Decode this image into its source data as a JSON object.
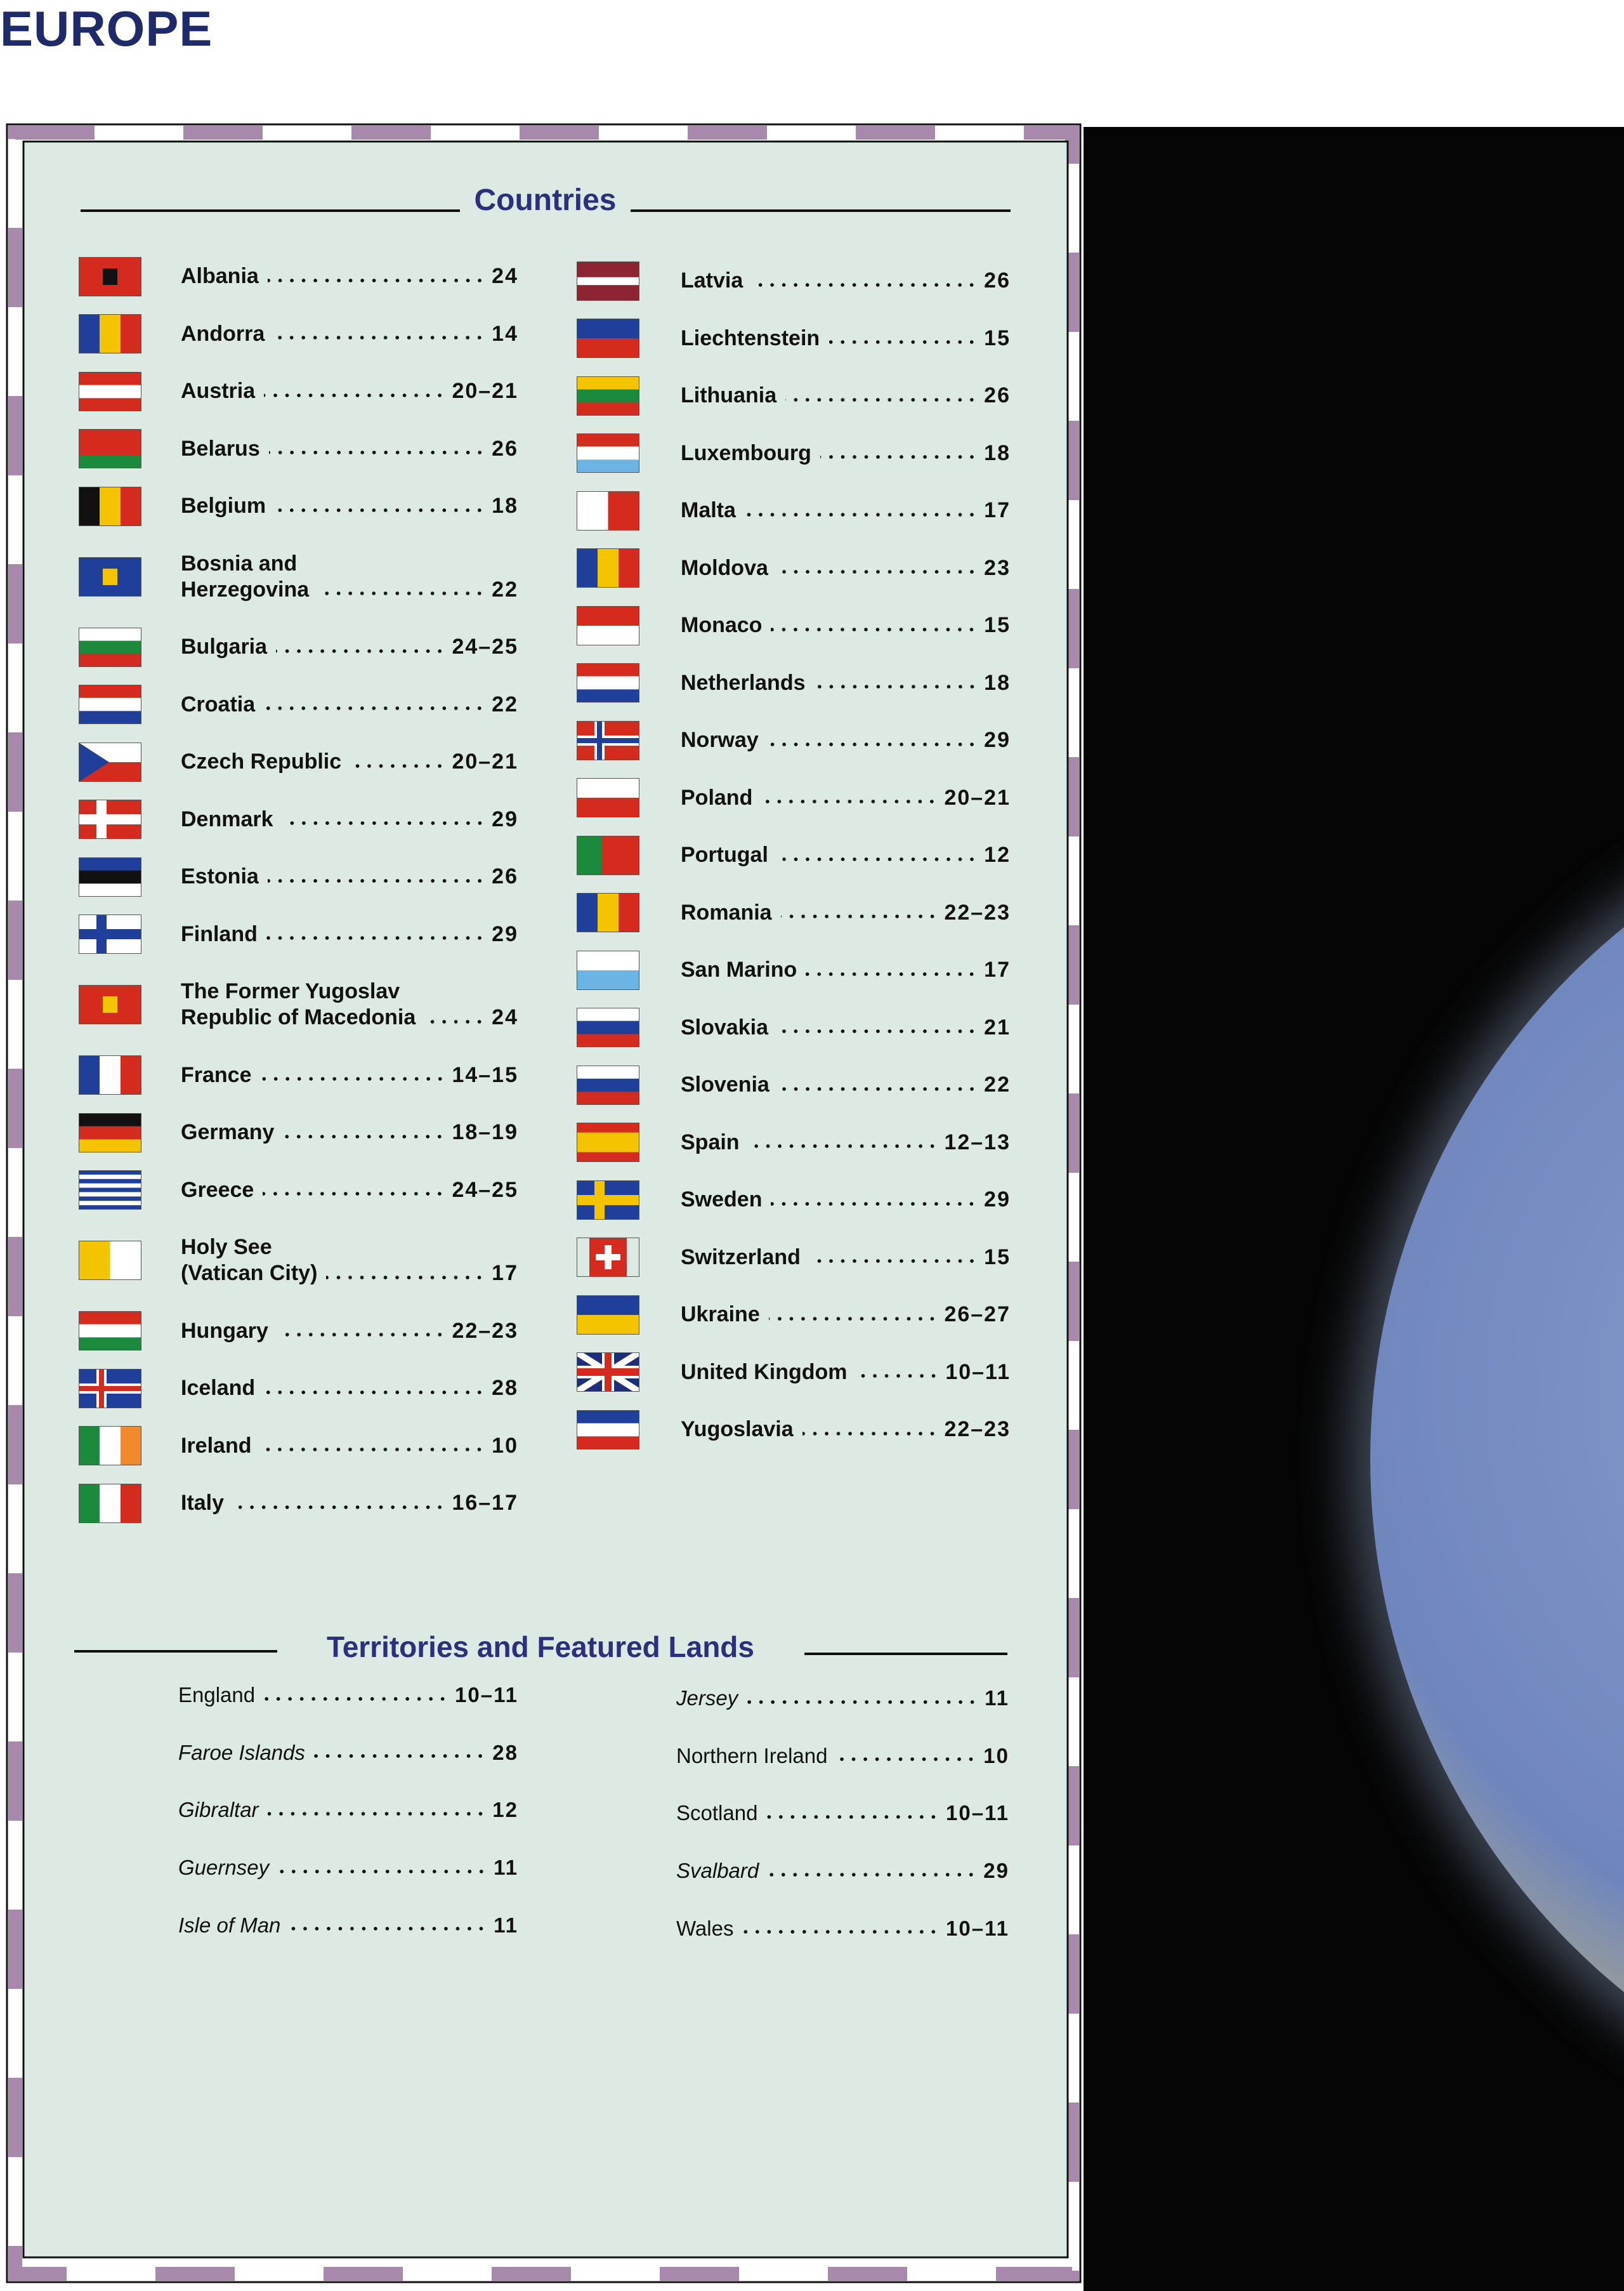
{
  "header": {
    "title": "EUROPE"
  },
  "countries": {
    "heading": "Countries",
    "left": [
      {
        "name": "Albania",
        "pages": "24"
      },
      {
        "name": "Andorra",
        "pages": "14"
      },
      {
        "name": "Austria",
        "pages": "20–21"
      },
      {
        "name": "Belarus",
        "pages": "26"
      },
      {
        "name": "Belgium",
        "pages": "18"
      },
      {
        "name": [
          "Bosnia and",
          "Herzegovina"
        ],
        "pages": "22"
      },
      {
        "name": "Bulgaria",
        "pages": "24–25"
      },
      {
        "name": "Croatia",
        "pages": "22"
      },
      {
        "name": "Czech Republic",
        "pages": "20–21"
      },
      {
        "name": "Denmark",
        "pages": "29"
      },
      {
        "name": "Estonia",
        "pages": "26"
      },
      {
        "name": "Finland",
        "pages": "29"
      },
      {
        "name": [
          "The Former Yugoslav",
          "Republic of Macedonia"
        ],
        "pages": "24"
      },
      {
        "name": "France",
        "pages": "14–15"
      },
      {
        "name": "Germany",
        "pages": "18–19"
      },
      {
        "name": "Greece",
        "pages": "24–25"
      },
      {
        "name": [
          "Holy See",
          "(Vatican City)"
        ],
        "pages": "17"
      },
      {
        "name": "Hungary",
        "pages": "22–23"
      },
      {
        "name": "Iceland",
        "pages": "28"
      },
      {
        "name": "Ireland",
        "pages": "10"
      },
      {
        "name": "Italy",
        "pages": "16–17"
      }
    ],
    "right": [
      {
        "name": "Latvia",
        "pages": "26"
      },
      {
        "name": "Liechtenstein",
        "pages": "15"
      },
      {
        "name": "Lithuania",
        "pages": "26"
      },
      {
        "name": "Luxembourg",
        "pages": "18"
      },
      {
        "name": "Malta",
        "pages": "17"
      },
      {
        "name": "Moldova",
        "pages": "23"
      },
      {
        "name": "Monaco",
        "pages": "15"
      },
      {
        "name": "Netherlands",
        "pages": "18"
      },
      {
        "name": "Norway",
        "pages": "29"
      },
      {
        "name": "Poland",
        "pages": "20–21"
      },
      {
        "name": "Portugal",
        "pages": "12"
      },
      {
        "name": "Romania",
        "pages": "22–23"
      },
      {
        "name": "San Marino",
        "pages": "17"
      },
      {
        "name": "Slovakia",
        "pages": "21"
      },
      {
        "name": "Slovenia",
        "pages": "22"
      },
      {
        "name": "Spain",
        "pages": "12–13"
      },
      {
        "name": "Sweden",
        "pages": "29"
      },
      {
        "name": "Switzerland",
        "pages": "15"
      },
      {
        "name": "Ukraine",
        "pages": "26–27"
      },
      {
        "name": "United Kingdom",
        "pages": "10–11"
      },
      {
        "name": "Yugoslavia",
        "pages": "22–23"
      }
    ]
  },
  "territories": {
    "heading": "Territories and Featured Lands",
    "left": [
      {
        "name": "England",
        "pages": "10–11"
      },
      {
        "name": "Faroe Islands",
        "pages": "28"
      },
      {
        "name": "Gibraltar",
        "pages": "12"
      },
      {
        "name": "Guernsey",
        "pages": "11"
      },
      {
        "name": "Isle of Man",
        "pages": "11"
      }
    ],
    "right": [
      {
        "name": "Jersey",
        "pages": "11"
      },
      {
        "name": "Northern Ireland",
        "pages": "10"
      },
      {
        "name": "Scotland",
        "pages": "10–11"
      },
      {
        "name": "Svalbard",
        "pages": "29"
      },
      {
        "name": "Wales",
        "pages": "10–11"
      }
    ]
  }
}
